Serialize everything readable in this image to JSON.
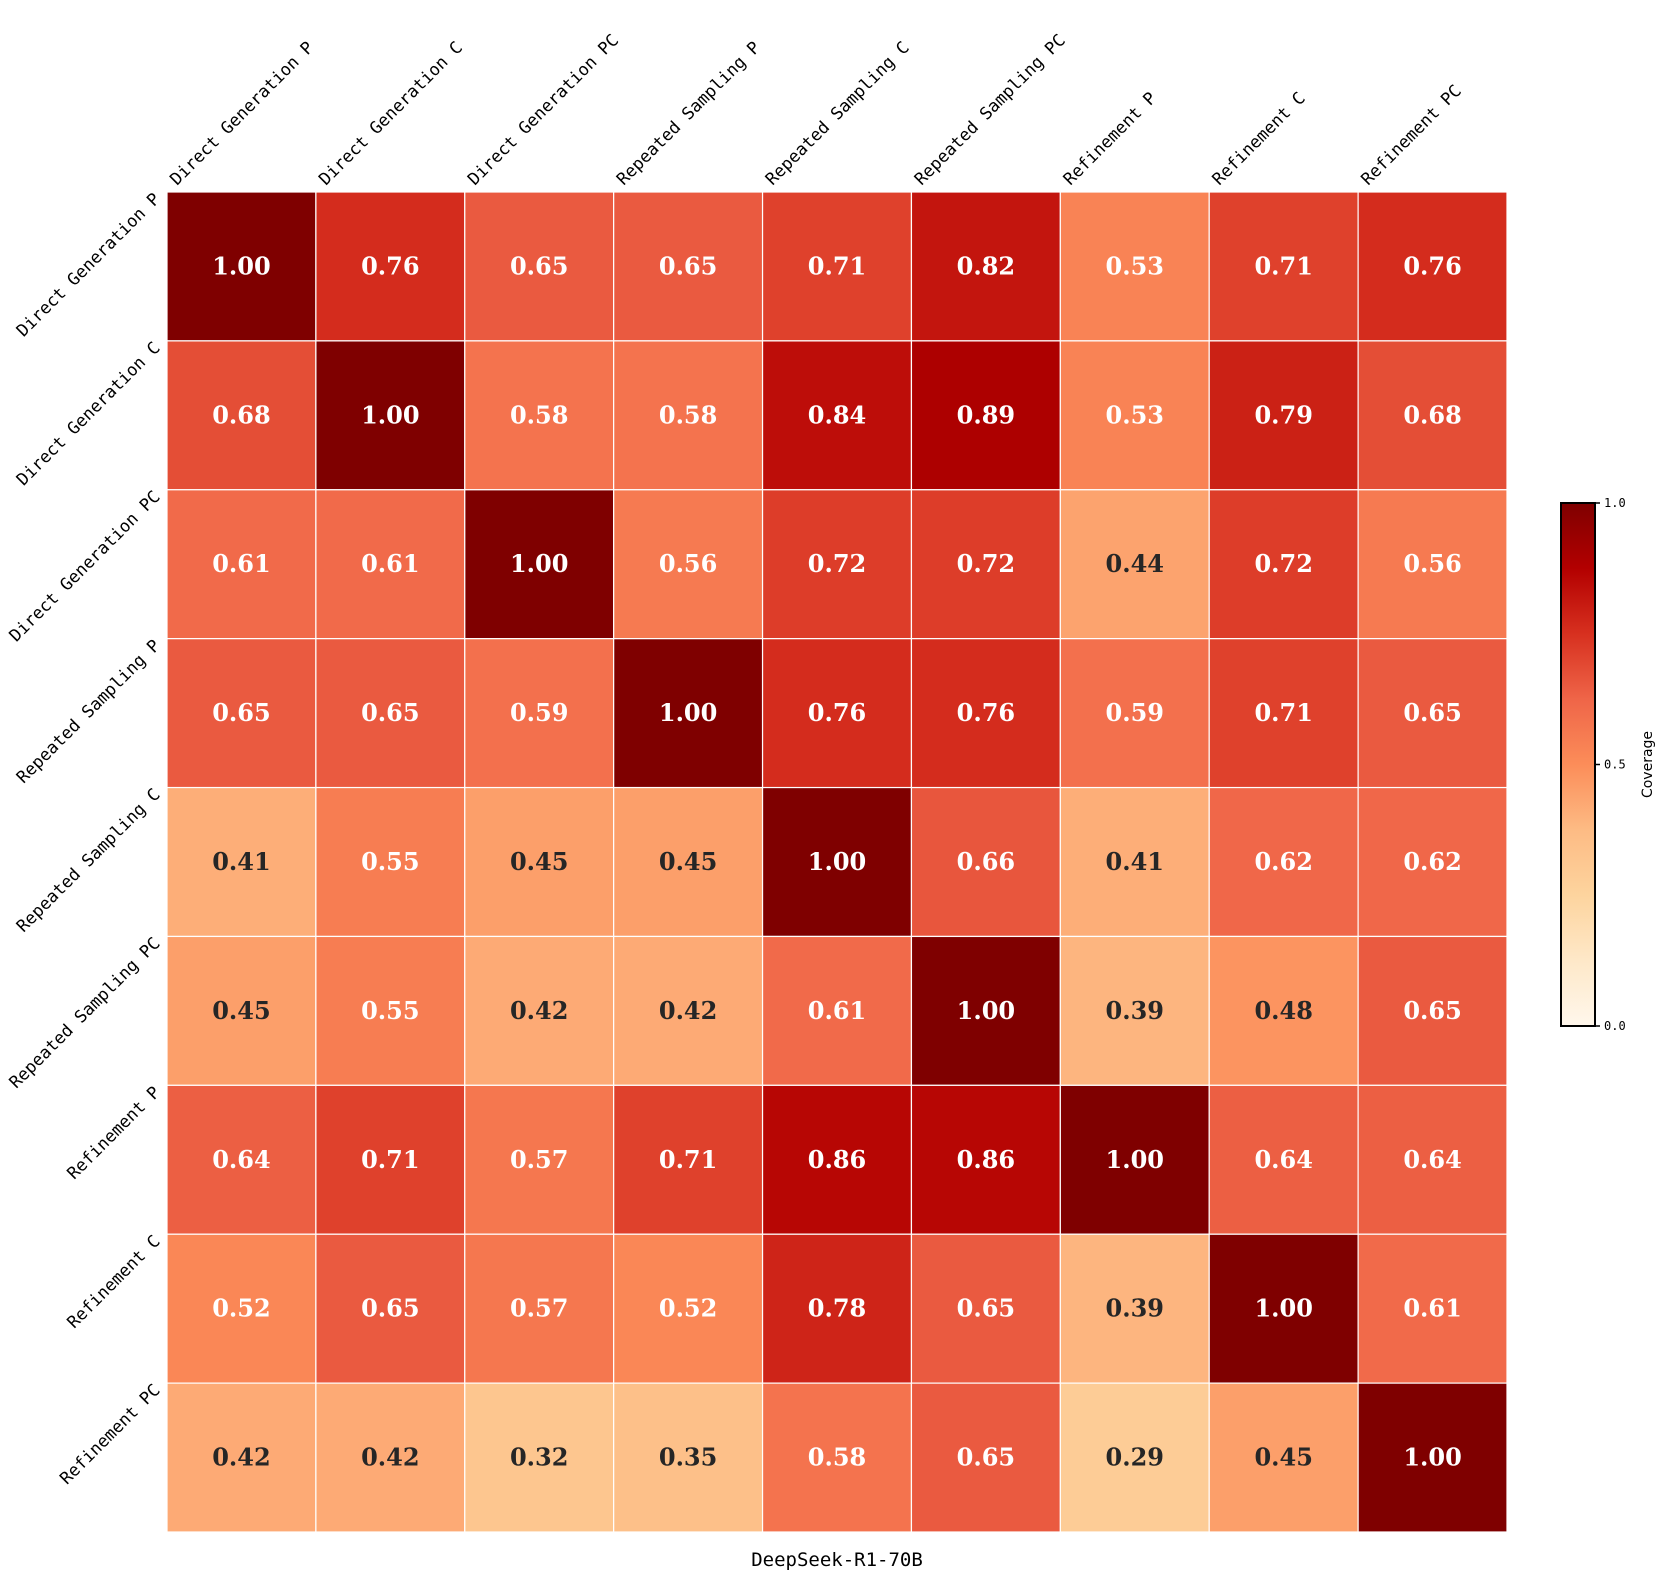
{
  "chart_data": {
    "type": "heatmap",
    "title": "",
    "xlabel": "DeepSeek-R1-70B",
    "ylabel": "",
    "x_categories": [
      "Direct Generation P",
      "Direct Generation C",
      "Direct Generation PC",
      "Repeated Sampling P",
      "Repeated Sampling C",
      "Repeated Sampling PC",
      "Refinement P",
      "Refinement C",
      "Refinement PC"
    ],
    "y_categories": [
      "Direct Generation P",
      "Direct Generation C",
      "Direct Generation PC",
      "Repeated Sampling P",
      "Repeated Sampling C",
      "Repeated Sampling PC",
      "Refinement P",
      "Refinement C",
      "Refinement PC"
    ],
    "values": [
      [
        1.0,
        0.76,
        0.65,
        0.65,
        0.71,
        0.82,
        0.53,
        0.71,
        0.76
      ],
      [
        0.68,
        1.0,
        0.58,
        0.58,
        0.84,
        0.89,
        0.53,
        0.79,
        0.68
      ],
      [
        0.61,
        0.61,
        1.0,
        0.56,
        0.72,
        0.72,
        0.44,
        0.72,
        0.56
      ],
      [
        0.65,
        0.65,
        0.59,
        1.0,
        0.76,
        0.76,
        0.59,
        0.71,
        0.65
      ],
      [
        0.41,
        0.55,
        0.45,
        0.45,
        1.0,
        0.66,
        0.41,
        0.62,
        0.62
      ],
      [
        0.45,
        0.55,
        0.42,
        0.42,
        0.61,
        1.0,
        0.39,
        0.48,
        0.65
      ],
      [
        0.64,
        0.71,
        0.57,
        0.71,
        0.86,
        0.86,
        1.0,
        0.64,
        0.64
      ],
      [
        0.52,
        0.65,
        0.57,
        0.52,
        0.78,
        0.65,
        0.39,
        1.0,
        0.61
      ],
      [
        0.42,
        0.42,
        0.32,
        0.35,
        0.58,
        0.65,
        0.29,
        0.45,
        1.0
      ]
    ],
    "value_format": "2 decimals",
    "colormap": "OrRd",
    "vmin": 0.0,
    "vmax": 1.0,
    "colorbar": {
      "label": "Coverage",
      "ticks": [
        0.0,
        0.5,
        1.0
      ],
      "tick_labels": [
        "0.0",
        "0.5",
        "1.0"
      ],
      "placement": "right"
    },
    "text_color_light": "#ffffff",
    "text_color_dark": "#262626",
    "text_threshold": 0.5,
    "grid": false
  }
}
